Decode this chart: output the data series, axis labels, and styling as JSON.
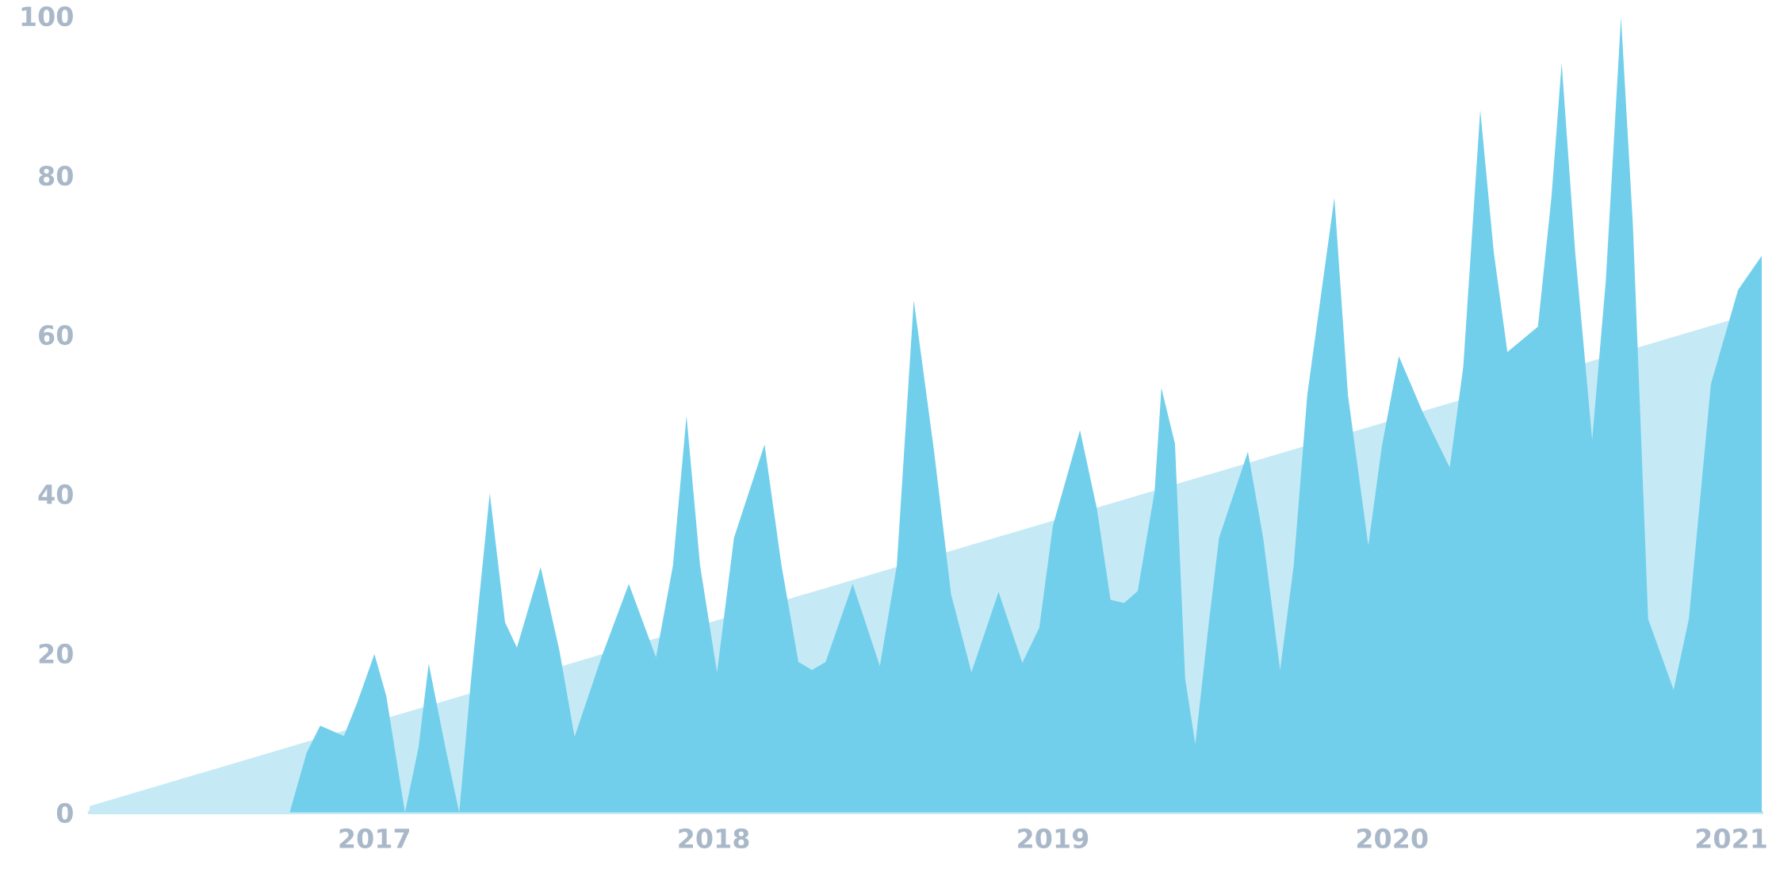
{
  "chart_data": {
    "type": "area",
    "xlim": [
      2016.16,
      2021.09
    ],
    "xticks": [
      2017,
      2018,
      2019,
      2020,
      2021
    ],
    "ylim": [
      0,
      100
    ],
    "yticks": [
      0,
      20,
      40,
      60,
      80,
      100
    ],
    "grid": false,
    "legend": false,
    "series": [
      {
        "color": "#c5eaf6",
        "x": [
          2016.16,
          2021.09
        ],
        "values": [
          0.8,
          63.0
        ]
      },
      {
        "color": "#72cfeb",
        "x": [
          2016.75,
          2016.8,
          2016.84,
          2016.91,
          2016.95,
          2017.0,
          2017.035,
          2017.09,
          2017.13,
          2017.16,
          2017.21,
          2017.25,
          2017.285,
          2017.34,
          2017.385,
          2017.42,
          2017.49,
          2017.545,
          2017.59,
          2017.67,
          2017.75,
          2017.83,
          2017.88,
          2017.92,
          2017.96,
          2018.01,
          2018.06,
          2018.15,
          2018.2,
          2018.25,
          2018.29,
          2018.33,
          2018.41,
          2018.49,
          2018.54,
          2018.59,
          2018.65,
          2018.7,
          2018.76,
          2018.84,
          2018.91,
          2018.96,
          2019.0,
          2019.08,
          2019.13,
          2019.17,
          2019.21,
          2019.25,
          2019.3,
          2019.32,
          2019.36,
          2019.39,
          2019.42,
          2019.46,
          2019.49,
          2019.575,
          2019.62,
          2019.67,
          2019.71,
          2019.75,
          2019.83,
          2019.87,
          2019.93,
          2019.97,
          2020.02,
          2020.09,
          2020.17,
          2020.21,
          2020.26,
          2020.3,
          2020.34,
          2020.43,
          2020.47,
          2020.5,
          2020.54,
          2020.59,
          2020.63,
          2020.675,
          2020.71,
          2020.755,
          2020.83,
          2020.875,
          2020.94,
          2021.02,
          2021.09
        ],
        "values": [
          0,
          7.5,
          10.9,
          9.6,
          13.9,
          19.9,
          14.6,
          0,
          8.2,
          18.7,
          8,
          0,
          16.8,
          40.1,
          23.9,
          20.7,
          30.8,
          20.4,
          9.5,
          19.6,
          28.7,
          19.5,
          31,
          49.8,
          31,
          17.6,
          34.5,
          46.2,
          31,
          18.9,
          17.9,
          18.9,
          28.7,
          18.4,
          31,
          64.3,
          45.3,
          27.4,
          17.6,
          27.7,
          18.8,
          23.2,
          36,
          48,
          38.1,
          26.7,
          26.3,
          27.8,
          40.3,
          53.3,
          46.3,
          16.8,
          8.6,
          23.9,
          34.5,
          45.3,
          34.5,
          17.9,
          31,
          52.4,
          77.2,
          52.4,
          33.5,
          46,
          57.3,
          50.3,
          43.3,
          56,
          88.2,
          70.3,
          57.8,
          61,
          77.3,
          94.1,
          70.3,
          46.8,
          66.7,
          99.9,
          73.8,
          24.3,
          15.4,
          24.3,
          53.8,
          65.6,
          69.9
        ]
      }
    ]
  }
}
